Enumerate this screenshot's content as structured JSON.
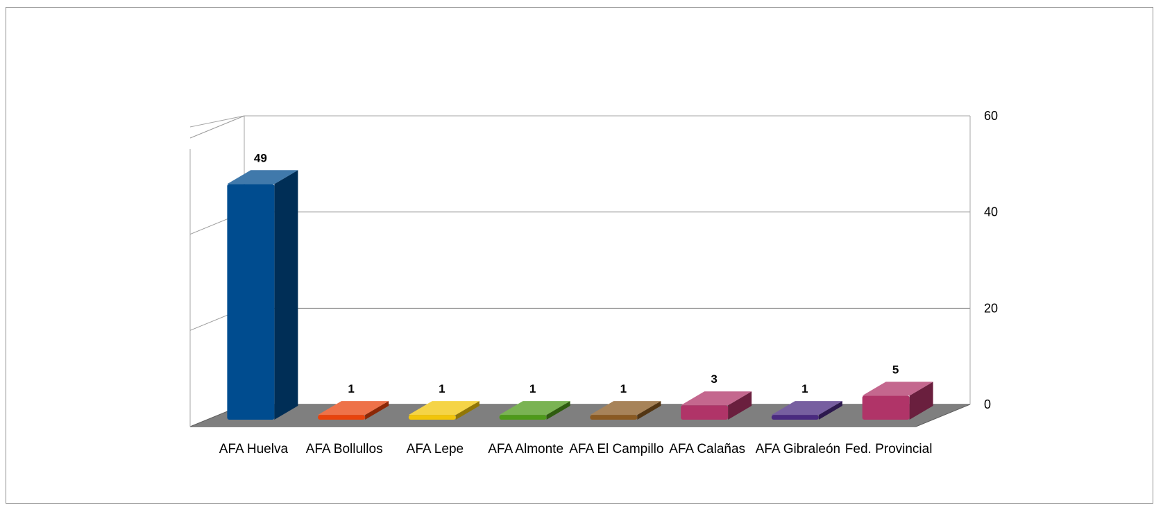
{
  "chart_data": {
    "type": "bar",
    "style": "3d-column",
    "categories": [
      "AFA Huelva",
      "AFA Bollullos",
      "AFA Lepe",
      "AFA Almonte",
      "AFA El Campillo",
      "AFA Calañas",
      "AFA Gibraleón",
      "Fed. Provincial"
    ],
    "values": [
      49,
      1,
      1,
      1,
      1,
      3,
      1,
      5
    ],
    "colors": [
      "#004c8f",
      "#e8430c",
      "#f2c50a",
      "#4e9a1a",
      "#8a5a22",
      "#b03468",
      "#4a2a80",
      "#b03468"
    ],
    "data_labels": [
      "49",
      "1",
      "1",
      "1",
      "1",
      "3",
      "1",
      "5"
    ],
    "yticks": [
      "0",
      "20",
      "40",
      "60"
    ],
    "ylim": [
      0,
      60
    ],
    "yaxis_position": "right",
    "grid": true,
    "floor_color": "#7f7f7f",
    "title": "",
    "xlabel": "",
    "ylabel": ""
  }
}
